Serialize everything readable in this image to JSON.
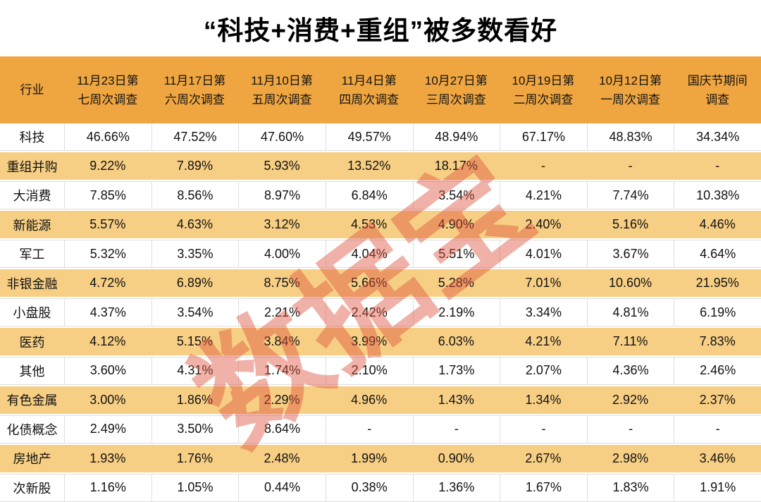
{
  "title": "“科技+消费+重组”被多数看好",
  "watermark": "数据宝",
  "colors": {
    "header_bg": "#F0A640",
    "row_alt_bg": "#F7CF84",
    "grid_line": "#DEDEDE",
    "watermark": "#E0573F",
    "title_text": "#000000"
  },
  "chart_data": {
    "type": "table",
    "title": "“科技+消费+重组”被多数看好",
    "industry_header": "行业",
    "columns": [
      {
        "label": "11月23日第七周次调查",
        "line1": "11月23日第",
        "line2": "七周次调查"
      },
      {
        "label": "11月17日第六周次调查",
        "line1": "11月17日第",
        "line2": "六周次调查"
      },
      {
        "label": "11月10日第五周次调查",
        "line1": "11月10日第",
        "line2": "五周次调查"
      },
      {
        "label": "11月4日第四周次调查",
        "line1": "11月4日第",
        "line2": "四周次调查"
      },
      {
        "label": "10月27日第三周次调查",
        "line1": "10月27日第",
        "line2": "三周次调查"
      },
      {
        "label": "10月19日第二周次调查",
        "line1": "10月19日第",
        "line2": "二周次调查"
      },
      {
        "label": "10月12日第一周次调查",
        "line1": "10月12日第",
        "line2": "一周次调查"
      },
      {
        "label": "国庆节期间调查",
        "line1": "国庆节期间",
        "line2": "调查"
      }
    ],
    "rows": [
      {
        "industry": "科技",
        "values": [
          "46.66%",
          "47.52%",
          "47.60%",
          "49.57%",
          "48.94%",
          "67.17%",
          "48.83%",
          "34.34%"
        ]
      },
      {
        "industry": "重组并购",
        "values": [
          "9.22%",
          "7.89%",
          "5.93%",
          "13.52%",
          "18.17%",
          "-",
          "-",
          "-"
        ]
      },
      {
        "industry": "大消费",
        "values": [
          "7.85%",
          "8.56%",
          "8.97%",
          "6.84%",
          "3.54%",
          "4.21%",
          "7.74%",
          "10.38%"
        ]
      },
      {
        "industry": "新能源",
        "values": [
          "5.57%",
          "4.63%",
          "3.12%",
          "4.53%",
          "4.90%",
          "2.40%",
          "5.16%",
          "4.46%"
        ]
      },
      {
        "industry": "军工",
        "values": [
          "5.32%",
          "3.35%",
          "4.00%",
          "4.04%",
          "5.51%",
          "4.01%",
          "3.67%",
          "4.64%"
        ]
      },
      {
        "industry": "非银金融",
        "values": [
          "4.72%",
          "6.89%",
          "8.75%",
          "5.66%",
          "5.28%",
          "7.01%",
          "10.60%",
          "21.95%"
        ]
      },
      {
        "industry": "小盘股",
        "values": [
          "4.37%",
          "3.54%",
          "2.21%",
          "2.42%",
          "2.19%",
          "3.34%",
          "4.81%",
          "6.19%"
        ]
      },
      {
        "industry": "医药",
        "values": [
          "4.12%",
          "5.15%",
          "3.84%",
          "3.99%",
          "6.03%",
          "4.21%",
          "7.11%",
          "7.83%"
        ]
      },
      {
        "industry": "其他",
        "values": [
          "3.60%",
          "4.31%",
          "1.74%",
          "2.10%",
          "1.73%",
          "2.07%",
          "4.36%",
          "2.46%"
        ]
      },
      {
        "industry": "有色金属",
        "values": [
          "3.00%",
          "1.86%",
          "2.29%",
          "4.96%",
          "1.43%",
          "1.34%",
          "2.92%",
          "2.37%"
        ]
      },
      {
        "industry": "化债概念",
        "values": [
          "2.49%",
          "3.50%",
          "8.64%",
          "-",
          "-",
          "-",
          "-",
          "-"
        ]
      },
      {
        "industry": "房地产",
        "values": [
          "1.93%",
          "1.76%",
          "2.48%",
          "1.99%",
          "0.90%",
          "2.67%",
          "2.98%",
          "3.46%"
        ]
      },
      {
        "industry": "次新股",
        "values": [
          "1.16%",
          "1.05%",
          "0.44%",
          "0.38%",
          "1.36%",
          "1.67%",
          "1.83%",
          "1.91%"
        ]
      }
    ]
  }
}
